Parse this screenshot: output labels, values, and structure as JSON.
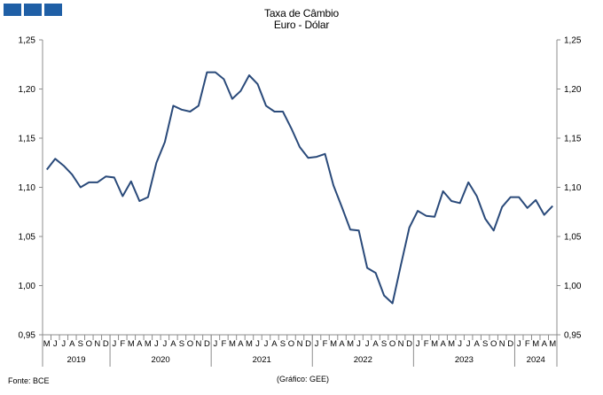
{
  "header": {
    "logo_color": "#1f5fa6",
    "title_line1": "Taxa de Câmbio",
    "title_line2": "Euro - Dólar"
  },
  "footer": {
    "source": "Fonte: BCE",
    "credit": "(Gráfico: GEE)"
  },
  "chart_data": {
    "type": "line",
    "title": "Taxa de Câmbio Euro - Dólar",
    "xlabel": "",
    "ylabel": "",
    "ylim": [
      0.95,
      1.25
    ],
    "yticks": [
      "0,95",
      "1,00",
      "1,05",
      "1,10",
      "1,15",
      "1,20",
      "1,25"
    ],
    "grid": false,
    "line_color": "#2a4a7a",
    "x": [
      "M",
      "J",
      "J",
      "A",
      "S",
      "O",
      "N",
      "D",
      "J",
      "F",
      "M",
      "A",
      "M",
      "J",
      "J",
      "A",
      "S",
      "O",
      "N",
      "D",
      "J",
      "F",
      "M",
      "A",
      "M",
      "J",
      "J",
      "A",
      "S",
      "O",
      "N",
      "D",
      "J",
      "F",
      "M",
      "A",
      "M",
      "J",
      "J",
      "A",
      "S",
      "O",
      "N",
      "D",
      "J",
      "F",
      "M",
      "A",
      "M",
      "J",
      "J",
      "A",
      "S",
      "O",
      "N",
      "D",
      "J",
      "F",
      "M",
      "A",
      "M"
    ],
    "year_labels": [
      {
        "label": "2019",
        "start": 0,
        "end": 7
      },
      {
        "label": "2020",
        "start": 8,
        "end": 19
      },
      {
        "label": "2021",
        "start": 20,
        "end": 31
      },
      {
        "label": "2022",
        "start": 32,
        "end": 43
      },
      {
        "label": "2023",
        "start": 44,
        "end": 55
      },
      {
        "label": "2024",
        "start": 56,
        "end": 60
      }
    ],
    "series": [
      {
        "values": [
          1.118,
          1.129,
          1.122,
          1.113,
          1.1,
          1.105,
          1.105,
          1.111,
          1.11,
          1.091,
          1.106,
          1.086,
          1.09,
          1.125,
          1.146,
          1.183,
          1.179,
          1.177,
          1.183,
          1.217,
          1.217,
          1.21,
          1.19,
          1.198,
          1.214,
          1.205,
          1.183,
          1.177,
          1.177,
          1.16,
          1.141,
          1.13,
          1.131,
          1.134,
          1.102,
          1.08,
          1.057,
          1.056,
          1.018,
          1.013,
          0.99,
          0.982,
          1.021,
          1.059,
          1.076,
          1.071,
          1.07,
          1.096,
          1.086,
          1.084,
          1.105,
          1.091,
          1.068,
          1.056,
          1.08,
          1.09,
          1.09,
          1.079,
          1.087,
          1.072,
          1.081
        ]
      }
    ]
  }
}
